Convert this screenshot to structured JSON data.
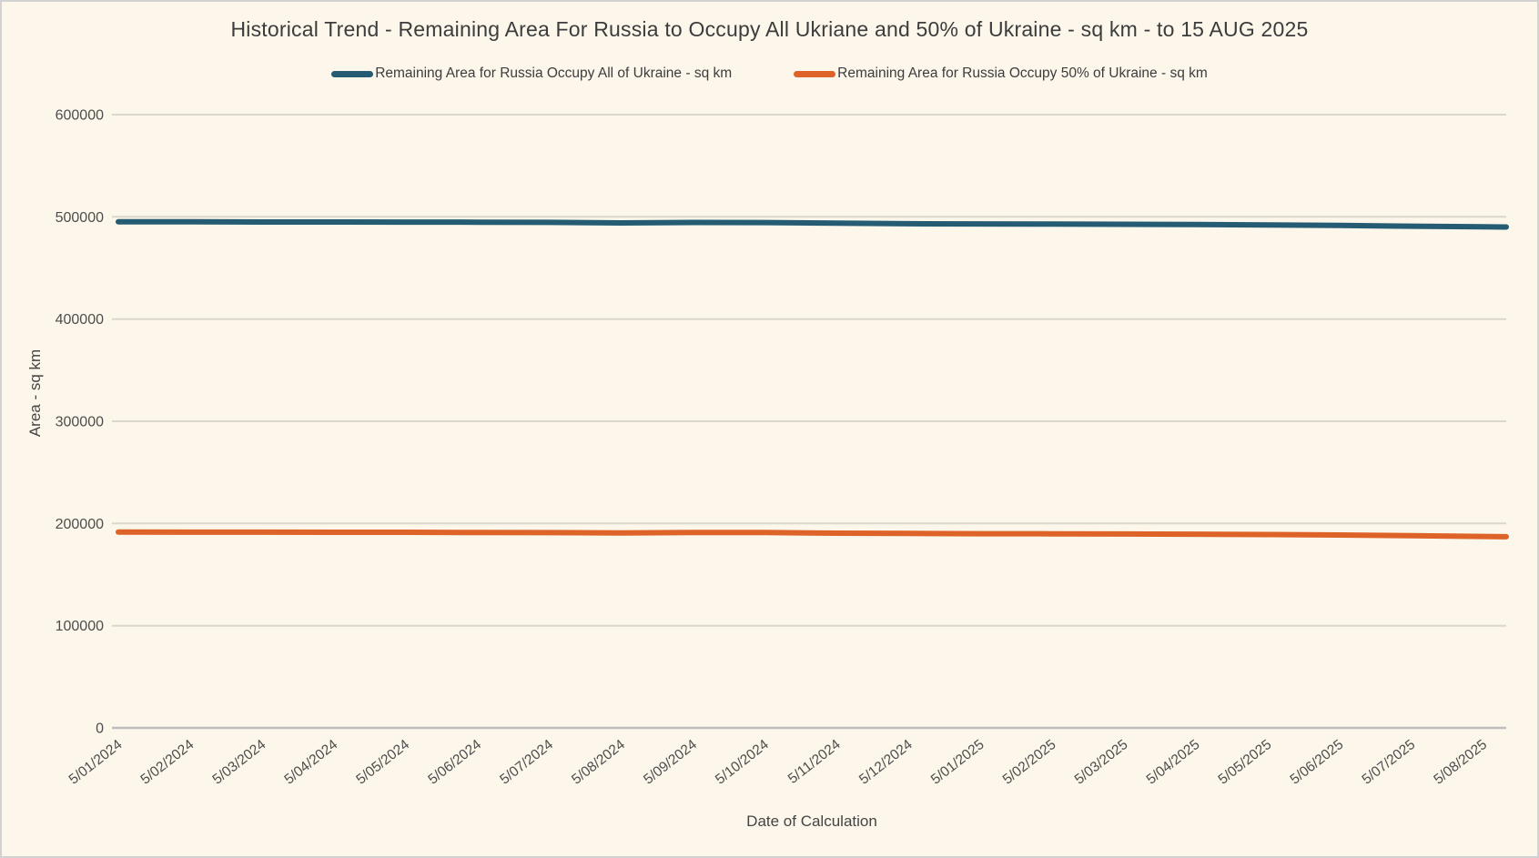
{
  "window": {
    "background_color": "#FCF7EA",
    "border_color": "#D2D2D2"
  },
  "chart_data": {
    "type": "line",
    "title": "Historical Trend - Remaining Area For Russia to Occupy All Ukriane and 50% of Ukraine - sq km - to 15 AUG 2025",
    "xlabel": "Date of Calculation",
    "ylabel": "Area - sq km",
    "ylim": [
      0,
      600000
    ],
    "ytick_step": 100000,
    "ytick_labels": [
      "0",
      "100000",
      "200000",
      "300000",
      "400000",
      "500000",
      "600000"
    ],
    "grid": true,
    "legend_position": "top",
    "x_tick_labels": [
      "5/01/2024",
      "5/02/2024",
      "5/03/2024",
      "5/04/2024",
      "5/05/2024",
      "5/06/2024",
      "5/07/2024",
      "5/08/2024",
      "5/09/2024",
      "5/10/2024",
      "5/11/2024",
      "5/12/2024",
      "5/01/2025",
      "5/02/2025",
      "5/03/2025",
      "5/04/2025",
      "5/05/2025",
      "5/06/2025",
      "5/07/2025",
      "5/08/2025"
    ],
    "x_end_note": "data extends past last tick to 15 AUG 2025",
    "series": [
      {
        "name": "Remaining Area for Russia Occupy All of Ukraine - sq km",
        "color": "#265C73",
        "x": [
          0,
          1,
          2,
          3,
          4,
          5,
          6,
          7,
          8,
          9,
          10,
          11,
          12,
          13,
          14,
          15,
          16,
          17,
          18,
          19,
          19.32
        ],
        "values": [
          495200,
          495100,
          495000,
          494950,
          494900,
          494800,
          494600,
          494100,
          494500,
          494400,
          493900,
          493300,
          493100,
          492900,
          492700,
          492500,
          492100,
          491600,
          490900,
          490300,
          490100
        ]
      },
      {
        "name": "Remaining Area for Russia Occupy 50% of Ukraine - sq km",
        "color": "#DE6328",
        "x": [
          0,
          1,
          2,
          3,
          4,
          5,
          6,
          7,
          8,
          9,
          10,
          11,
          12,
          13,
          14,
          15,
          16,
          17,
          18,
          19,
          19.32
        ],
        "values": [
          191600,
          191500,
          191500,
          191400,
          191400,
          191100,
          191000,
          190800,
          191200,
          191100,
          190500,
          190200,
          190000,
          189900,
          189700,
          189500,
          189200,
          188700,
          188000,
          187300,
          187000
        ]
      }
    ]
  }
}
